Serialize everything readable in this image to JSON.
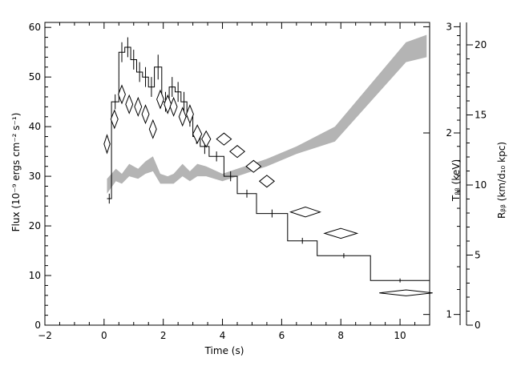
{
  "chart_data": {
    "type": "line",
    "xlabel": "Time (s)",
    "ylabel": "Flux (10⁻⁹ ergs cm⁻² s⁻¹)",
    "ylabel_right1": "Tᵦᵦ (keV)",
    "ylabel_right2": "Rᵦᵦ (km/d₁₀ kpc)",
    "xlim": [
      -2,
      11
    ],
    "ylim": [
      0,
      61
    ],
    "x_ticks": [
      -2,
      0,
      2,
      4,
      6,
      8,
      10
    ],
    "y_ticks": [
      0,
      10,
      20,
      30,
      40,
      50,
      60
    ],
    "temp_axis": {
      "scale": "log",
      "range": [
        0.96,
        3.05
      ],
      "ticks": [
        1,
        2,
        3
      ],
      "labels": [
        "1",
        "2",
        "3"
      ]
    },
    "radius_axis": {
      "range": [
        0,
        21.6
      ],
      "ticks": [
        0,
        5,
        10,
        15,
        20
      ],
      "labels": [
        "0",
        "5",
        "10",
        "15",
        "20"
      ]
    },
    "flux_steps": [
      {
        "x0": 0.1,
        "x1": 0.25,
        "y": 25.5,
        "err": 1.0
      },
      {
        "x0": 0.25,
        "x1": 0.5,
        "y": 45.0,
        "err": 1.5
      },
      {
        "x0": 0.5,
        "x1": 0.7,
        "y": 55.0,
        "err": 2.0
      },
      {
        "x0": 0.7,
        "x1": 0.9,
        "y": 56.0,
        "err": 2.0
      },
      {
        "x0": 0.9,
        "x1": 1.1,
        "y": 53.5,
        "err": 2.0
      },
      {
        "x0": 1.1,
        "x1": 1.3,
        "y": 51.0,
        "err": 2.0
      },
      {
        "x0": 1.3,
        "x1": 1.5,
        "y": 50.0,
        "err": 2.0
      },
      {
        "x0": 1.5,
        "x1": 1.7,
        "y": 48.0,
        "err": 2.0
      },
      {
        "x0": 1.7,
        "x1": 1.95,
        "y": 52.0,
        "err": 2.5
      },
      {
        "x0": 1.95,
        "x1": 2.2,
        "y": 45.0,
        "err": 2.0
      },
      {
        "x0": 2.2,
        "x1": 2.4,
        "y": 48.0,
        "err": 2.0
      },
      {
        "x0": 2.4,
        "x1": 2.6,
        "y": 47.0,
        "err": 2.0
      },
      {
        "x0": 2.6,
        "x1": 2.8,
        "y": 45.0,
        "err": 2.0
      },
      {
        "x0": 2.8,
        "x1": 3.0,
        "y": 42.0,
        "err": 2.0
      },
      {
        "x0": 3.0,
        "x1": 3.25,
        "y": 38.0,
        "err": 1.5
      },
      {
        "x0": 3.25,
        "x1": 3.55,
        "y": 36.0,
        "err": 1.5
      },
      {
        "x0": 3.55,
        "x1": 4.05,
        "y": 34.0,
        "err": 1.0
      },
      {
        "x0": 4.05,
        "x1": 4.5,
        "y": 30.0,
        "err": 1.0
      },
      {
        "x0": 4.5,
        "x1": 5.15,
        "y": 26.5,
        "err": 0.8
      },
      {
        "x0": 5.15,
        "x1": 6.2,
        "y": 22.5,
        "err": 0.8
      },
      {
        "x0": 6.2,
        "x1": 7.2,
        "y": 17.0,
        "err": 0.6
      },
      {
        "x0": 7.2,
        "x1": 9.0,
        "y": 14.0,
        "err": 0.5
      },
      {
        "x0": 9.0,
        "x1": 11.0,
        "y": 9.0,
        "err": 0.4
      }
    ],
    "temperature_diamonds": [
      {
        "x": 0.1,
        "y": 36.5,
        "dx": 0.1,
        "dy": 1.8
      },
      {
        "x": 0.35,
        "y": 41.5,
        "dx": 0.12,
        "dy": 1.8
      },
      {
        "x": 0.6,
        "y": 46.5,
        "dx": 0.12,
        "dy": 1.8
      },
      {
        "x": 0.85,
        "y": 44.5,
        "dx": 0.12,
        "dy": 1.8
      },
      {
        "x": 1.15,
        "y": 44.0,
        "dx": 0.12,
        "dy": 1.8
      },
      {
        "x": 1.4,
        "y": 42.5,
        "dx": 0.12,
        "dy": 1.8
      },
      {
        "x": 1.65,
        "y": 39.5,
        "dx": 0.12,
        "dy": 1.8
      },
      {
        "x": 1.9,
        "y": 45.5,
        "dx": 0.12,
        "dy": 1.8
      },
      {
        "x": 2.15,
        "y": 44.5,
        "dx": 0.12,
        "dy": 1.8
      },
      {
        "x": 2.35,
        "y": 44.0,
        "dx": 0.12,
        "dy": 1.8
      },
      {
        "x": 2.65,
        "y": 42.0,
        "dx": 0.12,
        "dy": 1.8
      },
      {
        "x": 2.9,
        "y": 42.5,
        "dx": 0.12,
        "dy": 1.8
      },
      {
        "x": 3.15,
        "y": 38.5,
        "dx": 0.15,
        "dy": 1.8
      },
      {
        "x": 3.45,
        "y": 37.5,
        "dx": 0.15,
        "dy": 1.6
      },
      {
        "x": 4.05,
        "y": 37.5,
        "dx": 0.25,
        "dy": 1.2
      },
      {
        "x": 4.5,
        "y": 35.0,
        "dx": 0.25,
        "dy": 1.2
      },
      {
        "x": 5.05,
        "y": 32.0,
        "dx": 0.25,
        "dy": 1.2
      },
      {
        "x": 5.5,
        "y": 29.0,
        "dx": 0.25,
        "dy": 1.2
      },
      {
        "x": 6.8,
        "y": 22.8,
        "dx": 0.5,
        "dy": 1.0
      },
      {
        "x": 8.0,
        "y": 18.5,
        "dx": 0.55,
        "dy": 1.0
      },
      {
        "x": 10.2,
        "y": 6.5,
        "dx": 0.9,
        "dy": 0.6
      }
    ],
    "radius_band": [
      {
        "x": 0.1,
        "lo": 26.5,
        "hi": 29.5
      },
      {
        "x": 0.4,
        "lo": 29.0,
        "hi": 31.5
      },
      {
        "x": 0.6,
        "lo": 28.5,
        "hi": 30.5
      },
      {
        "x": 0.85,
        "lo": 30.0,
        "hi": 32.5
      },
      {
        "x": 1.15,
        "lo": 29.5,
        "hi": 31.5
      },
      {
        "x": 1.4,
        "lo": 30.5,
        "hi": 33.0
      },
      {
        "x": 1.65,
        "lo": 31.0,
        "hi": 34.0
      },
      {
        "x": 1.9,
        "lo": 28.5,
        "hi": 30.5
      },
      {
        "x": 2.15,
        "lo": 28.5,
        "hi": 30.0
      },
      {
        "x": 2.35,
        "lo": 28.5,
        "hi": 30.5
      },
      {
        "x": 2.65,
        "lo": 30.0,
        "hi": 32.5
      },
      {
        "x": 2.9,
        "lo": 29.0,
        "hi": 31.0
      },
      {
        "x": 3.15,
        "lo": 30.0,
        "hi": 32.5
      },
      {
        "x": 3.45,
        "lo": 30.0,
        "hi": 32.0
      },
      {
        "x": 4.0,
        "lo": 29.0,
        "hi": 30.5
      },
      {
        "x": 4.5,
        "lo": 30.0,
        "hi": 31.5
      },
      {
        "x": 5.0,
        "lo": 31.0,
        "hi": 32.5
      },
      {
        "x": 5.5,
        "lo": 32.0,
        "hi": 33.5
      },
      {
        "x": 6.5,
        "lo": 34.5,
        "hi": 36.0
      },
      {
        "x": 7.8,
        "lo": 37.0,
        "hi": 40.0
      },
      {
        "x": 10.2,
        "lo": 53.0,
        "hi": 57.0
      },
      {
        "x": 10.9,
        "lo": 54.0,
        "hi": 58.5
      }
    ]
  }
}
